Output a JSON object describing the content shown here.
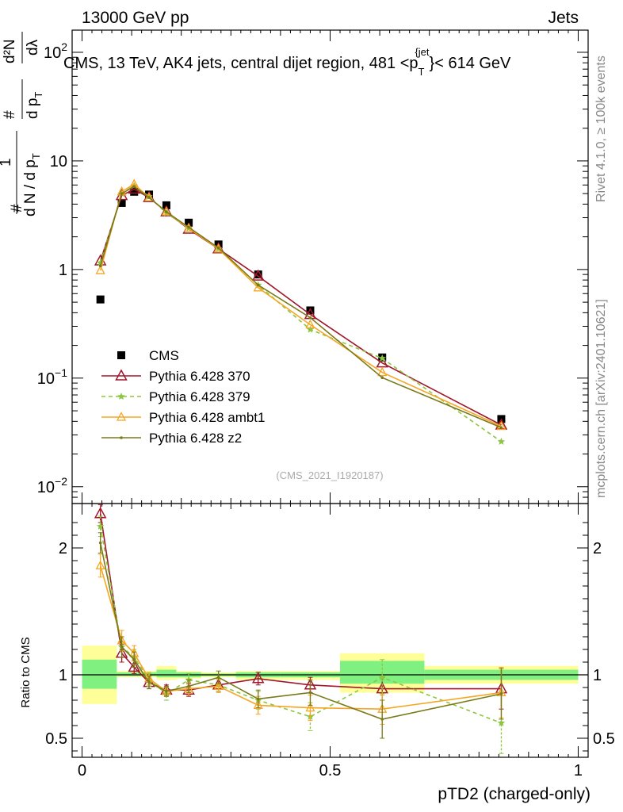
{
  "header": {
    "left": "13000 GeV pp",
    "right": "Jets"
  },
  "side_texts": {
    "rivet": "Rivet 4.1.0, ≥ 100k events",
    "mcplots": "mcplots.cern.ch [arXiv:2401.10621]"
  },
  "title": {
    "main": "CMS, 13 TeV, AK4 jets, central dijet region, 481 <p",
    "sub": "T",
    "sup": "{jet",
    "tail": "}< 614 GeV"
  },
  "ylabel": {
    "num1": "#",
    "den1": "d N / d p",
    "den1_sub": "T",
    "num2": "#",
    "den2": "d p",
    "den2_sub": "T",
    "num3": "d²N",
    "den3": "dλ",
    "num_one": "1",
    "hash": "#"
  },
  "ratio_ylabel": "Ratio to CMS",
  "xlabel": "pTD2 (charged-only)",
  "analysis_tag": "(CMS_2021_I1920187)",
  "legend": [
    {
      "label": "CMS",
      "key": "cms"
    },
    {
      "label": "Pythia 6.428 370",
      "key": "p370"
    },
    {
      "label": "Pythia 6.428 379",
      "key": "p379"
    },
    {
      "label": "Pythia 6.428 ambt1",
      "key": "ambt1"
    },
    {
      "label": "Pythia 6.428 z2",
      "key": "z2"
    }
  ],
  "colors": {
    "cms": "#000000",
    "p370": "#a0172b",
    "p379": "#8cc63f",
    "ambt1": "#f5a623",
    "z2": "#7a7a1a",
    "band_inner": "#80f080",
    "band_outer": "#ffff99"
  },
  "chart_data": {
    "type": "line",
    "xlim": [
      -0.02,
      1.02
    ],
    "xticks": [
      0,
      0.5,
      1
    ],
    "xtick_labels": [
      "0",
      "0.5",
      "1"
    ],
    "main": {
      "yscale": "log",
      "ylim": [
        0.007,
        160
      ],
      "yticks": [
        0.01,
        0.1,
        1,
        10,
        100
      ],
      "ytick_labels": [
        {
          "base": "10",
          "exp": "−2"
        },
        {
          "base": "10",
          "exp": "−1"
        },
        {
          "base": "1",
          "exp": ""
        },
        {
          "base": "10",
          "exp": ""
        },
        {
          "base": "10",
          "exp": "2"
        }
      ],
      "x": [
        0.037,
        0.08,
        0.105,
        0.135,
        0.17,
        0.215,
        0.275,
        0.355,
        0.46,
        0.605,
        0.845
      ],
      "series": [
        {
          "key": "cms",
          "name": "CMS",
          "values": [
            0.53,
            4.1,
            5.2,
            4.9,
            3.9,
            2.7,
            1.7,
            0.9,
            0.42,
            0.155,
            0.042
          ]
        },
        {
          "key": "p370",
          "name": "Pythia 6.428 370",
          "values": [
            1.2,
            4.8,
            5.5,
            4.6,
            3.4,
            2.35,
            1.55,
            0.87,
            0.385,
            0.138,
            0.037
          ]
        },
        {
          "key": "p379",
          "name": "Pythia 6.428 379",
          "values": [
            1.15,
            5.0,
            5.9,
            4.7,
            3.3,
            2.4,
            1.55,
            0.72,
            0.28,
            0.152,
            0.026
          ]
        },
        {
          "key": "ambt1",
          "name": "Pythia 6.428 ambt1",
          "values": [
            0.98,
            5.2,
            6.1,
            4.6,
            3.4,
            2.4,
            1.55,
            0.68,
            0.31,
            0.113,
            0.036
          ]
        },
        {
          "key": "z2",
          "name": "Pythia 6.428 z2",
          "values": [
            1.08,
            5.0,
            5.8,
            4.6,
            3.4,
            2.45,
            1.58,
            0.72,
            0.36,
            0.101,
            0.035
          ]
        }
      ]
    },
    "ratio": {
      "ylim": [
        0.35,
        2.35
      ],
      "yticks": [
        0.5,
        1,
        2
      ],
      "ytick_labels": [
        "0.5",
        "1",
        "2"
      ],
      "bins": [
        {
          "lo": 0.0,
          "hi": 0.07,
          "inner": [
            0.89,
            1.12
          ],
          "outer": [
            0.77,
            1.23
          ]
        },
        {
          "lo": 0.07,
          "hi": 0.095,
          "inner": [
            0.99,
            1.02
          ],
          "outer": [
            0.98,
            1.03
          ]
        },
        {
          "lo": 0.095,
          "hi": 0.12,
          "inner": [
            0.99,
            1.02
          ],
          "outer": [
            0.98,
            1.03
          ]
        },
        {
          "lo": 0.12,
          "hi": 0.15,
          "inner": [
            0.99,
            1.02
          ],
          "outer": [
            0.98,
            1.03
          ]
        },
        {
          "lo": 0.15,
          "hi": 0.19,
          "inner": [
            0.98,
            1.04
          ],
          "outer": [
            0.96,
            1.07
          ]
        },
        {
          "lo": 0.19,
          "hi": 0.24,
          "inner": [
            0.98,
            1.02
          ],
          "outer": [
            0.97,
            1.03
          ]
        },
        {
          "lo": 0.24,
          "hi": 0.31,
          "inner": [
            0.99,
            1.01
          ],
          "outer": [
            0.98,
            1.02
          ]
        },
        {
          "lo": 0.31,
          "hi": 0.4,
          "inner": [
            0.98,
            1.02
          ],
          "outer": [
            0.96,
            1.03
          ]
        },
        {
          "lo": 0.4,
          "hi": 0.52,
          "inner": [
            0.98,
            1.02
          ],
          "outer": [
            0.96,
            1.03
          ]
        },
        {
          "lo": 0.52,
          "hi": 0.69,
          "inner": [
            0.93,
            1.11
          ],
          "outer": [
            0.86,
            1.17
          ]
        },
        {
          "lo": 0.69,
          "hi": 1.0,
          "inner": [
            0.96,
            1.04
          ],
          "outer": [
            0.93,
            1.07
          ]
        }
      ],
      "series": [
        {
          "key": "p370",
          "values": [
            2.27,
            1.17,
            1.06,
            0.94,
            0.88,
            0.88,
            0.92,
            0.97,
            0.92,
            0.89,
            0.89
          ],
          "errors": [
            0.07,
            0.07,
            0.05,
            0.05,
            0.04,
            0.05,
            0.05,
            0.05,
            0.06,
            0.09,
            0.16
          ]
        },
        {
          "key": "p379",
          "values": [
            2.17,
            1.22,
            1.14,
            0.96,
            0.85,
            0.96,
            0.92,
            0.8,
            0.67,
            0.98,
            0.62
          ],
          "errors": [
            0.08,
            0.08,
            0.06,
            0.05,
            0.05,
            0.05,
            0.05,
            0.07,
            0.11,
            0.14,
            0.24
          ]
        },
        {
          "key": "ambt1",
          "values": [
            1.86,
            1.27,
            1.17,
            0.97,
            0.87,
            0.89,
            0.91,
            0.76,
            0.74,
            0.73,
            0.86
          ],
          "errors": [
            0.09,
            0.08,
            0.06,
            0.05,
            0.04,
            0.05,
            0.05,
            0.07,
            0.1,
            0.12,
            0.2
          ]
        },
        {
          "key": "z2",
          "values": [
            2.04,
            1.22,
            1.12,
            0.94,
            0.87,
            0.91,
            0.98,
            0.81,
            0.86,
            0.65,
            0.85
          ],
          "errors": [
            0.08,
            0.08,
            0.06,
            0.05,
            0.04,
            0.05,
            0.05,
            0.07,
            0.1,
            0.15,
            0.2
          ]
        }
      ]
    }
  }
}
